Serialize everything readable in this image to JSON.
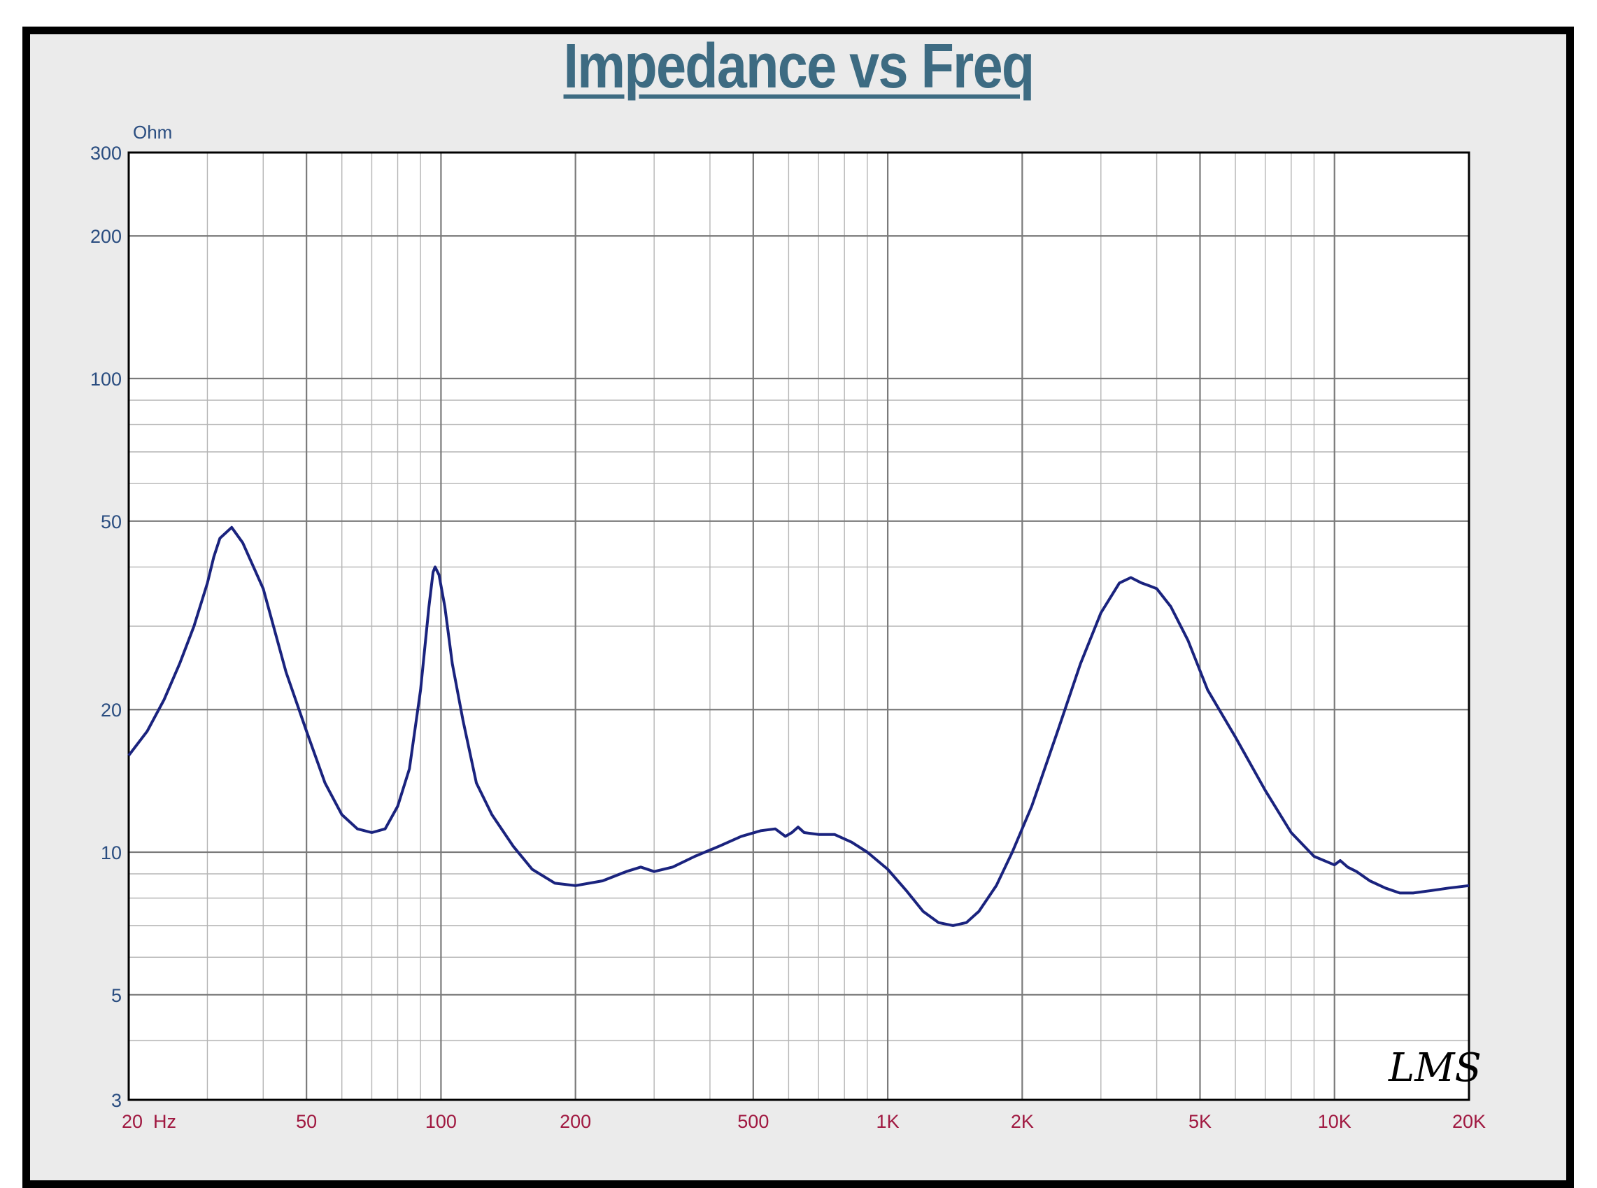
{
  "colors": {
    "curve": "#1a237e",
    "grid": "#9e9e9e",
    "title": "#3d6b82",
    "y_ticks": "#2a4d80",
    "x_ticks": "#a01840",
    "background": "#ebebeb",
    "plot_background": "#ffffff"
  },
  "chart_data": {
    "type": "line",
    "title": "Impedance vs Freq",
    "ylabel": "Ohm",
    "xscale": "log",
    "yscale": "log",
    "xlim": [
      20,
      20000
    ],
    "ylim": [
      3,
      300
    ],
    "grid": true,
    "x_tick_labels": [
      {
        "value": 20,
        "label": "20  Hz"
      },
      {
        "value": 50,
        "label": "50"
      },
      {
        "value": 100,
        "label": "100"
      },
      {
        "value": 200,
        "label": "200"
      },
      {
        "value": 500,
        "label": "500"
      },
      {
        "value": 1000,
        "label": "1K"
      },
      {
        "value": 2000,
        "label": "2K"
      },
      {
        "value": 5000,
        "label": "5K"
      },
      {
        "value": 10000,
        "label": "10K"
      },
      {
        "value": 20000,
        "label": "20K"
      }
    ],
    "y_tick_labels": [
      {
        "value": 300,
        "label": "300"
      },
      {
        "value": 200,
        "label": "200"
      },
      {
        "value": 100,
        "label": "100"
      },
      {
        "value": 50,
        "label": "50"
      },
      {
        "value": 20,
        "label": "20"
      },
      {
        "value": 10,
        "label": "10"
      },
      {
        "value": 5,
        "label": "5"
      },
      {
        "value": 3,
        "label": "3"
      }
    ],
    "watermark": "LMS",
    "series": [
      {
        "x": [
          20,
          22,
          24,
          26,
          28,
          30,
          31,
          32,
          34,
          36,
          40,
          45,
          50,
          55,
          60,
          65,
          70,
          75,
          80,
          85,
          90,
          94,
          96,
          97,
          99,
          102,
          106,
          112,
          120,
          130,
          145,
          160,
          180,
          200,
          230,
          260,
          280,
          300,
          330,
          370,
          420,
          470,
          520,
          560,
          590,
          610,
          630,
          650,
          700,
          760,
          830,
          900,
          1000,
          1100,
          1200,
          1300,
          1400,
          1500,
          1600,
          1750,
          1900,
          2100,
          2400,
          2700,
          3000,
          3300,
          3500,
          3700,
          3850,
          4000,
          4300,
          4700,
          5200,
          6000,
          7000,
          8000,
          9000,
          10000,
          10300,
          10700,
          11200,
          12000,
          13000,
          14000,
          15000,
          16500,
          18000,
          20000
        ],
        "y": [
          16,
          18,
          21,
          25,
          30,
          37,
          42,
          46,
          48.5,
          45,
          36,
          24,
          18,
          14,
          12,
          11.2,
          11,
          11.2,
          12.5,
          15,
          22,
          33,
          39,
          40,
          38.5,
          33,
          25,
          19,
          14,
          12,
          10.3,
          9.2,
          8.6,
          8.5,
          8.7,
          9.1,
          9.3,
          9.1,
          9.3,
          9.8,
          10.3,
          10.8,
          11.1,
          11.2,
          10.8,
          11,
          11.3,
          11,
          10.9,
          10.9,
          10.5,
          10,
          9.2,
          8.3,
          7.5,
          7.1,
          7.0,
          7.1,
          7.5,
          8.5,
          10,
          12.5,
          18,
          25,
          32,
          37,
          38,
          37,
          36.5,
          36,
          33,
          28,
          22,
          17.5,
          13.5,
          11,
          9.8,
          9.4,
          9.6,
          9.3,
          9.1,
          8.7,
          8.4,
          8.2,
          8.2,
          8.3,
          8.4,
          8.5
        ]
      }
    ]
  }
}
